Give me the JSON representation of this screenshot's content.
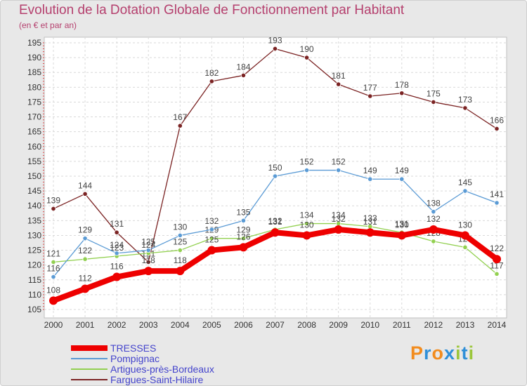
{
  "title": "Evolution de la Dotation Globale de Fonctionnement par Habitant",
  "subtitle": "(en € et par an)",
  "logo": {
    "text": "Proxiti",
    "letter_colors": [
      "#f28c1e",
      "#2f8fd8",
      "#f28c1e",
      "#2f8fd8",
      "#9bc63b",
      "#2f8fd8",
      "#9bc63b"
    ]
  },
  "chart_data": {
    "type": "line",
    "title": "Evolution de la Dotation Globale de Fonctionnement par Habitant",
    "subtitle": "(en € et par an)",
    "xlabel": "",
    "ylabel": "",
    "x": [
      "2000",
      "2001",
      "2002",
      "2003",
      "2004",
      "2005",
      "2006",
      "2007",
      "2008",
      "2009",
      "2010",
      "2011",
      "2012",
      "2013",
      "2014"
    ],
    "ylim": [
      105,
      195
    ],
    "y_ticks": [
      105,
      110,
      115,
      120,
      125,
      130,
      135,
      140,
      145,
      150,
      155,
      160,
      165,
      170,
      175,
      180,
      185,
      190,
      195
    ],
    "grid": true,
    "legend_position": "bottom-left",
    "series": [
      {
        "name": "TRESSES",
        "color": "#ee0000",
        "values": [
          108,
          112,
          116,
          118,
          118,
          125,
          126,
          131,
          130,
          132,
          131,
          130,
          132,
          130,
          122
        ],
        "labels": [
          "108",
          "112",
          "116",
          "118",
          "118",
          "125",
          "126",
          "131",
          "130",
          "132",
          "131",
          "130",
          "132",
          "130",
          "122"
        ]
      },
      {
        "name": "Pompignac",
        "color": "#5b9bd5",
        "values": [
          116,
          129,
          124,
          125,
          130,
          132,
          135,
          150,
          152,
          152,
          149,
          149,
          138,
          145,
          141
        ],
        "labels": [
          "116",
          "129",
          "124",
          "125",
          "130",
          "132",
          "135",
          "150",
          "152",
          "152",
          "149",
          "149",
          "138",
          "145",
          "141"
        ]
      },
      {
        "name": "Artigues-près-Bordeaux",
        "color": "#92d050",
        "values": [
          121,
          122,
          123,
          124,
          125,
          129,
          129,
          132,
          134,
          134,
          133,
          131,
          128,
          126,
          117
        ],
        "labels": [
          "121",
          "122",
          "123",
          "124",
          "125",
          "129",
          "129",
          "132",
          "134",
          "134",
          "133",
          "131",
          "128",
          "126",
          "117"
        ]
      },
      {
        "name": "Fargues-Saint-Hilaire",
        "color": "#7b2323",
        "values": [
          139,
          144,
          131,
          121,
          167,
          182,
          184,
          193,
          190,
          181,
          177,
          178,
          175,
          173,
          166
        ],
        "labels": [
          "139",
          "144",
          "131",
          "121",
          "167",
          "182",
          "184",
          "193",
          "190",
          "181",
          "177",
          "178",
          "175",
          "173",
          "166"
        ]
      }
    ]
  }
}
